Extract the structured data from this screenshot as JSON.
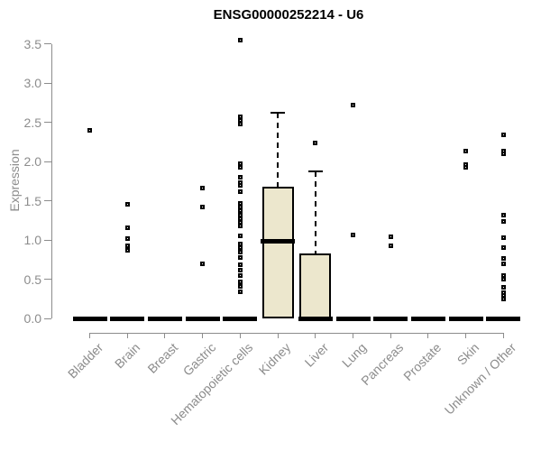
{
  "chart_data": {
    "type": "boxplot",
    "title": "ENSG00000252214 - U6",
    "ylabel": "Expression",
    "xlabel": "",
    "ylim": [
      0,
      3.5
    ],
    "yticks": [
      "0.0",
      "0.5",
      "1.0",
      "1.5",
      "2.0",
      "2.5",
      "3.0",
      "3.5"
    ],
    "grid": false,
    "legend": "none",
    "categories": [
      "Bladder",
      "Brain",
      "Breast",
      "Gastric",
      "Hematopoietic cells",
      "Kidney",
      "Liver",
      "Lung",
      "Pancreas",
      "Prostate",
      "Skin",
      "Unknown / Other"
    ],
    "series": [
      {
        "category": "Bladder",
        "box": {
          "q1": 0,
          "median": 0,
          "q3": 0,
          "whisker_low": 0,
          "whisker_high": 0
        },
        "outliers": [
          2.4
        ]
      },
      {
        "category": "Brain",
        "box": {
          "q1": 0,
          "median": 0,
          "q3": 0,
          "whisker_low": 0,
          "whisker_high": 0
        },
        "outliers": [
          1.45,
          1.15,
          1.02,
          0.93,
          0.87
        ]
      },
      {
        "category": "Breast",
        "box": {
          "q1": 0,
          "median": 0,
          "q3": 0,
          "whisker_low": 0,
          "whisker_high": 0
        },
        "outliers": []
      },
      {
        "category": "Gastric",
        "box": {
          "q1": 0,
          "median": 0,
          "q3": 0,
          "whisker_low": 0,
          "whisker_high": 0
        },
        "outliers": [
          1.66,
          1.42,
          0.7
        ]
      },
      {
        "category": "Hematopoietic cells",
        "box": {
          "q1": 0,
          "median": 0,
          "q3": 0,
          "whisker_low": 0,
          "whisker_high": 0
        },
        "outliers": [
          3.55,
          2.57,
          2.52,
          2.48,
          1.97,
          1.93,
          1.8,
          1.73,
          1.7,
          1.62,
          1.47,
          1.42,
          1.37,
          1.32,
          1.27,
          1.22,
          1.18,
          1.05,
          0.95,
          0.9,
          0.84,
          0.78,
          0.68,
          0.62,
          0.55,
          0.47,
          0.41,
          0.34
        ]
      },
      {
        "category": "Kidney",
        "box": {
          "q1": 0,
          "median": 0.98,
          "q3": 1.68,
          "whisker_low": 0,
          "whisker_high": 2.62
        },
        "outliers": []
      },
      {
        "category": "Liver",
        "box": {
          "q1": 0,
          "median": 0,
          "q3": 0.83,
          "whisker_low": 0,
          "whisker_high": 1.87
        },
        "outliers": [
          2.23
        ]
      },
      {
        "category": "Lung",
        "box": {
          "q1": 0,
          "median": 0,
          "q3": 0,
          "whisker_low": 0,
          "whisker_high": 0
        },
        "outliers": [
          2.72,
          1.06
        ]
      },
      {
        "category": "Pancreas",
        "box": {
          "q1": 0,
          "median": 0,
          "q3": 0,
          "whisker_low": 0,
          "whisker_high": 0
        },
        "outliers": [
          1.04,
          0.92
        ]
      },
      {
        "category": "Prostate",
        "box": {
          "q1": 0,
          "median": 0,
          "q3": 0,
          "whisker_low": 0,
          "whisker_high": 0
        },
        "outliers": []
      },
      {
        "category": "Skin",
        "box": {
          "q1": 0,
          "median": 0,
          "q3": 0,
          "whisker_low": 0,
          "whisker_high": 0
        },
        "outliers": [
          2.13,
          1.96,
          1.92
        ]
      },
      {
        "category": "Unknown / Other",
        "box": {
          "q1": 0,
          "median": 0,
          "q3": 0,
          "whisker_low": 0,
          "whisker_high": 0
        },
        "outliers": [
          2.34,
          2.13,
          2.1,
          1.32,
          1.23,
          1.03,
          0.9,
          0.76,
          0.7,
          0.55,
          0.5,
          0.4,
          0.33,
          0.29,
          0.25
        ]
      }
    ],
    "colors": {
      "background": "#ffffff",
      "box_fill": "#ece7cd",
      "box_stroke": "#000000",
      "axis": "#8c8c8c",
      "tick_text": "#8c8c8c",
      "title_text": "#000000"
    }
  }
}
